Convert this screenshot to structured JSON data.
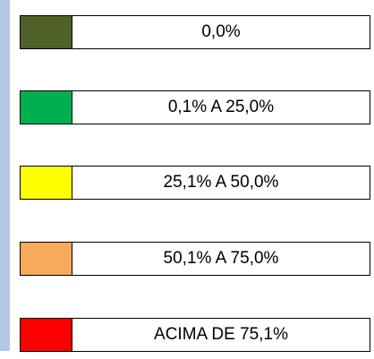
{
  "legend": {
    "items": [
      {
        "label": "0,0%",
        "color": "#4f6228"
      },
      {
        "label": "0,1% A 25,0%",
        "color": "#00b050"
      },
      {
        "label": "25,1% A 50,0%",
        "color": "#ffff00"
      },
      {
        "label": "50,1% A 75,0%",
        "color": "#f9a95b"
      },
      {
        "label": "ACIMA DE 75,1%",
        "color": "#ff0000"
      }
    ]
  }
}
